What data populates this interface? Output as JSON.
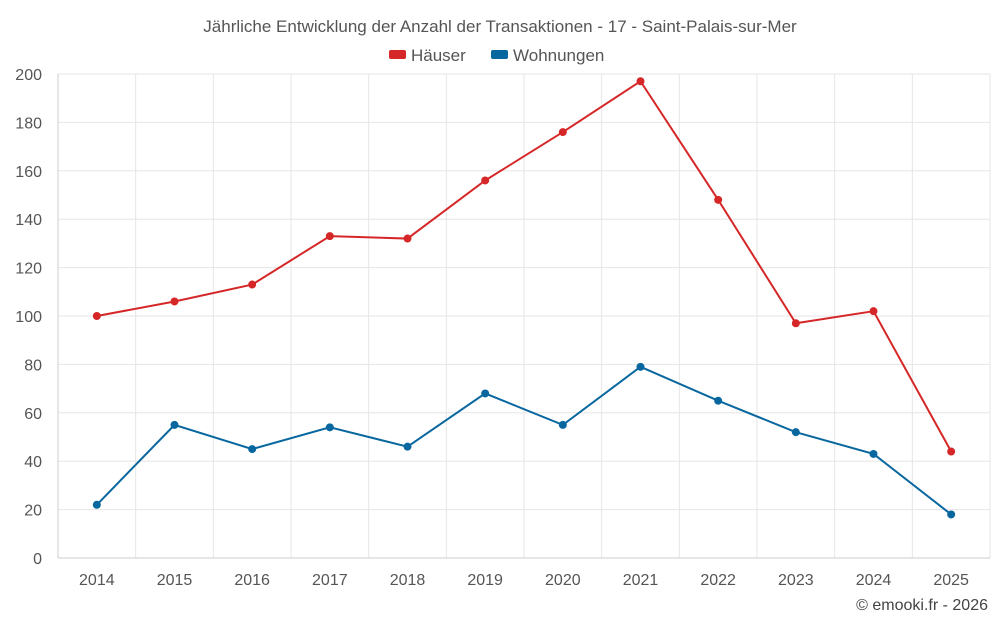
{
  "chart_data": {
    "type": "line",
    "title": "Jährliche Entwicklung der Anzahl der Transaktionen - 17 - Saint-Palais-sur-Mer",
    "categories": [
      "2014",
      "2015",
      "2016",
      "2017",
      "2018",
      "2019",
      "2020",
      "2021",
      "2022",
      "2023",
      "2024",
      "2025"
    ],
    "series": [
      {
        "name": "Häuser",
        "color": "#d62728",
        "values": [
          100,
          106,
          113,
          133,
          132,
          156,
          176,
          197,
          148,
          97,
          102,
          44
        ]
      },
      {
        "name": "Wohnungen",
        "color": "#08679f",
        "values": [
          22,
          55,
          45,
          54,
          46,
          68,
          55,
          79,
          65,
          52,
          43,
          18
        ]
      }
    ],
    "ylim": [
      0,
      200
    ],
    "yticks": [
      0,
      20,
      40,
      60,
      80,
      100,
      120,
      140,
      160,
      180,
      200
    ],
    "xlabel": "",
    "ylabel": "",
    "grid": true,
    "legend_position": "top-center"
  },
  "credit": "© emooki.fr - 2026"
}
